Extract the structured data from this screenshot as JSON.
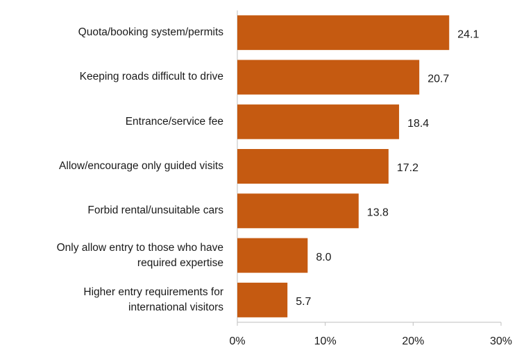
{
  "chart_data": {
    "type": "bar",
    "orientation": "horizontal",
    "categories": [
      "Quota/booking system/permits",
      "Keeping roads difficult to drive",
      "Entrance/service fee",
      "Allow/encourage only guided visits",
      "Forbid rental/unsuitable cars",
      "Only allow entry to those who have required expertise",
      "Higher entry requirements for international visitors"
    ],
    "values": [
      24.1,
      20.7,
      18.4,
      17.2,
      13.8,
      8.0,
      5.7
    ],
    "value_labels": [
      "24.1",
      "20.7",
      "18.4",
      "17.2",
      "13.8",
      "8.0",
      "5.7"
    ],
    "color": "#c55a11",
    "xlim": [
      0,
      30
    ],
    "xticks": [
      {
        "value": 0,
        "label": "0%"
      },
      {
        "value": 10,
        "label": "10%"
      },
      {
        "value": 20,
        "label": "20%"
      },
      {
        "value": 30,
        "label": "30%"
      }
    ],
    "grid": false
  }
}
